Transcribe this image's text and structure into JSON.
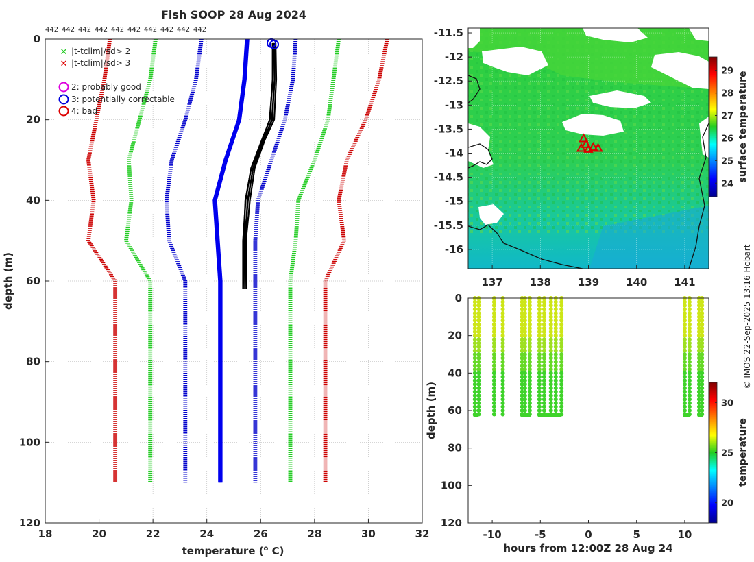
{
  "chart_data": [
    {
      "id": "profiles",
      "type": "line",
      "title": "Fish SOOP 28 Aug 2024",
      "top_labels": [
        "442",
        "442",
        "442",
        "442",
        "442",
        "442",
        "442",
        "442",
        "442",
        "442"
      ],
      "xlabel": "temperature (",
      "xlabel_sup": "o",
      "xlabel_unit": " C)",
      "ylabel": "depth (m)",
      "xlim": [
        18,
        32
      ],
      "ylim": [
        0,
        120
      ],
      "xticks": [
        18,
        20,
        22,
        24,
        26,
        28,
        30,
        32
      ],
      "yticks": [
        0,
        20,
        40,
        60,
        80,
        100,
        120
      ],
      "legend": [
        {
          "label": "|t-tclim|/sd> 2",
          "marker": "x",
          "color": "#22cc22"
        },
        {
          "label": "|t-tclim|/sd> 3",
          "marker": "x",
          "color": "#dd0000"
        },
        {
          "label": "2: probably good",
          "marker": "o",
          "color": "#dd00dd"
        },
        {
          "label": "3: potentially correctable",
          "marker": "o",
          "color": "#0000dd"
        },
        {
          "label": "4: bad",
          "marker": "o",
          "color": "#dd0000"
        }
      ],
      "series": [
        {
          "name": "clim-3sd-low",
          "color": "#cc0000",
          "style": "dotted",
          "points": [
            [
              20.4,
              0
            ],
            [
              20.2,
              10
            ],
            [
              19.9,
              20
            ],
            [
              19.6,
              30
            ],
            [
              19.8,
              40
            ],
            [
              19.6,
              50
            ],
            [
              20.6,
              60
            ],
            [
              20.6,
              110
            ]
          ]
        },
        {
          "name": "clim-2sd-low",
          "color": "#22cc22",
          "style": "dotted",
          "points": [
            [
              22.1,
              0
            ],
            [
              21.9,
              10
            ],
            [
              21.5,
              20
            ],
            [
              21.1,
              30
            ],
            [
              21.2,
              40
            ],
            [
              21.0,
              50
            ],
            [
              21.9,
              60
            ],
            [
              21.9,
              110
            ]
          ]
        },
        {
          "name": "clim-1sd-low",
          "color": "#0000cc",
          "style": "dotted",
          "points": [
            [
              23.8,
              0
            ],
            [
              23.6,
              10
            ],
            [
              23.2,
              20
            ],
            [
              22.7,
              30
            ],
            [
              22.5,
              40
            ],
            [
              22.6,
              50
            ],
            [
              23.2,
              60
            ],
            [
              23.2,
              110
            ]
          ]
        },
        {
          "name": "clim-mean",
          "color": "#0000ee",
          "style": "solid",
          "points": [
            [
              25.5,
              0
            ],
            [
              25.4,
              10
            ],
            [
              25.2,
              20
            ],
            [
              24.7,
              30
            ],
            [
              24.3,
              40
            ],
            [
              24.4,
              50
            ],
            [
              24.5,
              60
            ],
            [
              24.5,
              110
            ]
          ]
        },
        {
          "name": "clim-1sd-high",
          "color": "#0000cc",
          "style": "dotted",
          "points": [
            [
              27.3,
              0
            ],
            [
              27.2,
              10
            ],
            [
              26.9,
              20
            ],
            [
              26.4,
              30
            ],
            [
              25.9,
              40
            ],
            [
              25.8,
              50
            ],
            [
              25.8,
              60
            ],
            [
              25.8,
              110
            ]
          ]
        },
        {
          "name": "clim-2sd-high",
          "color": "#22cc22",
          "style": "dotted",
          "points": [
            [
              28.9,
              0
            ],
            [
              28.7,
              10
            ],
            [
              28.5,
              20
            ],
            [
              28.0,
              30
            ],
            [
              27.4,
              40
            ],
            [
              27.3,
              50
            ],
            [
              27.1,
              60
            ],
            [
              27.1,
              110
            ]
          ]
        },
        {
          "name": "clim-3sd-high",
          "color": "#cc0000",
          "style": "dotted",
          "points": [
            [
              30.7,
              0
            ],
            [
              30.4,
              10
            ],
            [
              29.9,
              20
            ],
            [
              29.2,
              30
            ],
            [
              28.9,
              40
            ],
            [
              29.1,
              50
            ],
            [
              28.4,
              60
            ],
            [
              28.4,
              110
            ]
          ]
        },
        {
          "name": "observed-profiles",
          "color": "#000000",
          "style": "solid",
          "points": [
            [
              26.5,
              1
            ],
            [
              26.5,
              10
            ],
            [
              26.4,
              20
            ],
            [
              26.1,
              25
            ],
            [
              25.7,
              32
            ],
            [
              25.5,
              40
            ],
            [
              25.4,
              50
            ],
            [
              25.4,
              62
            ]
          ]
        }
      ],
      "flagged_points": [
        {
          "x": 26.4,
          "y": 1,
          "flag": "3: potentially correctable",
          "color": "#0000dd"
        }
      ]
    },
    {
      "id": "sst-map",
      "type": "heatmap",
      "xlim": [
        136.5,
        141.5
      ],
      "ylim": [
        -16.4,
        -11.4
      ],
      "xticks": [
        "137",
        "138",
        "139",
        "140",
        "141"
      ],
      "yticks": [
        "-11.5",
        "-12",
        "-12.5",
        "-13",
        "-13.5",
        "-14",
        "-14.5",
        "-15",
        "-15.5",
        "-16"
      ],
      "colorbar_label": "surface temperature",
      "colorbar_ticks": [
        "29",
        "28",
        "27",
        "26",
        "25",
        "24"
      ],
      "colorbar_range": [
        23.4,
        29.6
      ],
      "stations": [
        [
          138.9,
          -13.7
        ],
        [
          138.95,
          -13.82
        ],
        [
          138.85,
          -13.9
        ],
        [
          139.0,
          -13.92
        ],
        [
          139.1,
          -13.88
        ],
        [
          139.2,
          -13.9
        ]
      ],
      "station_color": "#dd0000"
    },
    {
      "id": "depth-time",
      "type": "scatter",
      "xlabel": "hours from 12:00Z 28 Aug 24",
      "ylabel": "depth (m)",
      "xlim": [
        -12.5,
        12.5
      ],
      "ylim": [
        0,
        120
      ],
      "xticks": [
        "-10",
        "-5",
        "0",
        "5",
        "10"
      ],
      "yticks": [
        "0",
        "20",
        "40",
        "60",
        "80",
        "100",
        "120"
      ],
      "profile_hours": [
        -11.8,
        -11.4,
        -9.8,
        -8.9,
        -6.9,
        -6.6,
        -6.1,
        -5.1,
        -4.6,
        -3.9,
        -3.4,
        -2.8,
        10.0,
        10.5,
        11.5,
        11.8
      ],
      "profile_max_depth": 62,
      "colorbar_label": "temperature",
      "colorbar_ticks": [
        "30",
        "25",
        "20"
      ],
      "colorbar_range": [
        18,
        32
      ]
    }
  ],
  "credit": "© IMOS 22-Sep-2025 13:16 Hobart"
}
